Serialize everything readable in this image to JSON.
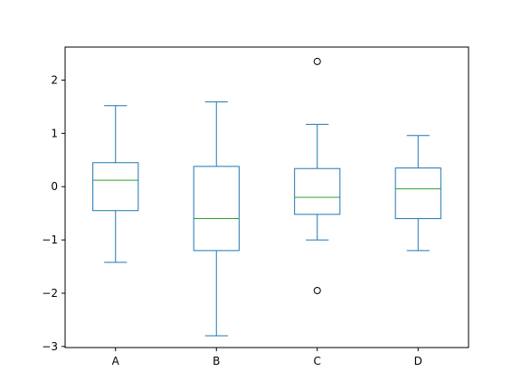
{
  "chart_data": {
    "type": "box",
    "categories": [
      "A",
      "B",
      "C",
      "D"
    ],
    "boxes": [
      {
        "label": "A",
        "whisker_low": -1.42,
        "q1": -0.45,
        "median": 0.12,
        "q3": 0.45,
        "whisker_high": 1.52,
        "outliers": []
      },
      {
        "label": "B",
        "whisker_low": -2.8,
        "q1": -1.2,
        "median": -0.6,
        "q3": 0.38,
        "whisker_high": 1.59,
        "outliers": []
      },
      {
        "label": "C",
        "whisker_low": -1.0,
        "q1": -0.52,
        "median": -0.2,
        "q3": 0.34,
        "whisker_high": 1.17,
        "outliers": [
          2.35,
          -1.95
        ]
      },
      {
        "label": "D",
        "whisker_low": -1.2,
        "q1": -0.6,
        "median": -0.04,
        "q3": 0.35,
        "whisker_high": 0.96,
        "outliers": []
      }
    ],
    "ylim": [
      -3.02,
      2.62
    ],
    "yticks": [
      -3,
      -2,
      -1,
      0,
      1,
      2
    ],
    "ytick_labels": [
      "−3",
      "−2",
      "−1",
      "0",
      "1",
      "2"
    ],
    "title": "",
    "xlabel": "",
    "ylabel": "",
    "grid": false,
    "colors": {
      "box": "#1f77b4",
      "median": "#2ca02c",
      "axis": "#000000",
      "outlier": "#000000"
    }
  }
}
